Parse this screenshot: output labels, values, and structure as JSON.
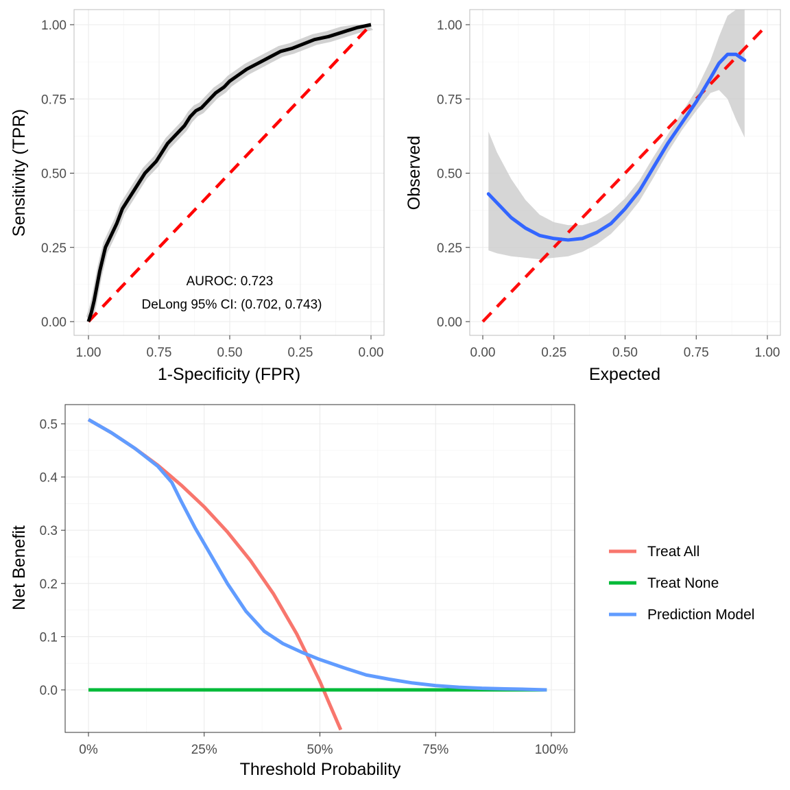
{
  "chart_data": [
    {
      "type": "line",
      "panel": "roc",
      "xlabel": "1-Specificity (FPR)",
      "ylabel": "Sensitivity (TPR)",
      "xlim": [
        1.0,
        0.0
      ],
      "ylim": [
        0.0,
        1.0
      ],
      "x_reversed": true,
      "grid": true,
      "x_ticks": [
        "1.00",
        "0.75",
        "0.50",
        "0.25",
        "0.00"
      ],
      "y_ticks": [
        "0.00",
        "0.25",
        "0.50",
        "0.75",
        "1.00"
      ],
      "annotations": [
        "AUROC: 0.723",
        "DeLong 95% CI: (0.702, 0.743)"
      ],
      "colors": {
        "curve": "#000000",
        "reference": "#ff0000",
        "band": "#cccccc"
      },
      "series": [
        {
          "role": "curve",
          "x_spec": [
            1.0,
            0.99,
            0.98,
            0.97,
            0.96,
            0.95,
            0.94,
            0.92,
            0.9,
            0.88,
            0.86,
            0.84,
            0.82,
            0.8,
            0.78,
            0.76,
            0.74,
            0.72,
            0.7,
            0.68,
            0.66,
            0.64,
            0.62,
            0.6,
            0.58,
            0.55,
            0.52,
            0.5,
            0.47,
            0.44,
            0.4,
            0.36,
            0.32,
            0.28,
            0.24,
            0.2,
            0.15,
            0.1,
            0.05,
            0.0
          ],
          "y": [
            0.0,
            0.03,
            0.07,
            0.12,
            0.17,
            0.21,
            0.25,
            0.29,
            0.33,
            0.38,
            0.41,
            0.44,
            0.47,
            0.5,
            0.52,
            0.54,
            0.57,
            0.6,
            0.62,
            0.64,
            0.66,
            0.69,
            0.71,
            0.72,
            0.74,
            0.77,
            0.79,
            0.81,
            0.83,
            0.85,
            0.87,
            0.89,
            0.91,
            0.92,
            0.935,
            0.95,
            0.96,
            0.975,
            0.99,
            1.0
          ],
          "band": 0.018
        },
        {
          "role": "reference",
          "x_spec": [
            1.0,
            0.0
          ],
          "y": [
            0.0,
            1.0
          ]
        }
      ]
    },
    {
      "type": "line",
      "panel": "calibration",
      "xlabel": "Expected",
      "ylabel": "Observed",
      "xlim": [
        0.0,
        1.0
      ],
      "ylim": [
        0.0,
        1.0
      ],
      "grid": true,
      "x_ticks": [
        "0.00",
        "0.25",
        "0.50",
        "0.75",
        "1.00"
      ],
      "y_ticks": [
        "0.00",
        "0.25",
        "0.50",
        "0.75",
        "1.00"
      ],
      "colors": {
        "curve": "#3366ff",
        "reference": "#ff0000",
        "band": "#cccccc"
      },
      "series": [
        {
          "role": "curve",
          "x": [
            0.02,
            0.05,
            0.1,
            0.15,
            0.2,
            0.25,
            0.3,
            0.35,
            0.4,
            0.45,
            0.5,
            0.55,
            0.6,
            0.65,
            0.7,
            0.75,
            0.8,
            0.83,
            0.86,
            0.89,
            0.92
          ],
          "y": [
            0.43,
            0.4,
            0.35,
            0.315,
            0.29,
            0.28,
            0.275,
            0.28,
            0.3,
            0.33,
            0.38,
            0.44,
            0.52,
            0.6,
            0.67,
            0.74,
            0.82,
            0.87,
            0.9,
            0.9,
            0.88
          ],
          "band_lower": [
            0.24,
            0.23,
            0.22,
            0.215,
            0.21,
            0.215,
            0.22,
            0.235,
            0.26,
            0.295,
            0.345,
            0.405,
            0.485,
            0.57,
            0.645,
            0.71,
            0.77,
            0.78,
            0.75,
            0.68,
            0.62
          ],
          "band_upper": [
            0.64,
            0.57,
            0.48,
            0.41,
            0.36,
            0.335,
            0.325,
            0.325,
            0.34,
            0.37,
            0.415,
            0.475,
            0.555,
            0.63,
            0.705,
            0.78,
            0.88,
            0.96,
            1.03,
            1.1,
            1.14
          ]
        },
        {
          "role": "reference",
          "x": [
            0.0,
            1.0
          ],
          "y": [
            0.0,
            1.0
          ]
        }
      ]
    },
    {
      "type": "line",
      "panel": "decision-curve",
      "xlabel": "Threshold Probability",
      "ylabel": "Net Benefit",
      "xlim": [
        0.0,
        1.0
      ],
      "ylim": [
        -0.08,
        0.53
      ],
      "grid": true,
      "x_ticks": [
        "0%",
        "25%",
        "50%",
        "75%",
        "100%"
      ],
      "y_ticks": [
        "0.0",
        "0.1",
        "0.2",
        "0.3",
        "0.4",
        "0.5"
      ],
      "legend": "right",
      "series": [
        {
          "name": "Treat All",
          "color": "#f8766d",
          "x": [
            0.0,
            0.05,
            0.1,
            0.15,
            0.2,
            0.25,
            0.3,
            0.35,
            0.4,
            0.45,
            0.5,
            0.52,
            0.545
          ],
          "y": [
            0.508,
            0.483,
            0.454,
            0.422,
            0.385,
            0.344,
            0.297,
            0.243,
            0.18,
            0.105,
            0.016,
            -0.025,
            -0.075
          ]
        },
        {
          "name": "Treat None",
          "color": "#00ba38",
          "x": [
            0.0,
            0.99
          ],
          "y": [
            0.0,
            0.0
          ]
        },
        {
          "name": "Prediction Model",
          "color": "#619cff",
          "x": [
            0.0,
            0.05,
            0.1,
            0.15,
            0.18,
            0.2,
            0.23,
            0.26,
            0.3,
            0.34,
            0.38,
            0.42,
            0.46,
            0.5,
            0.55,
            0.6,
            0.65,
            0.7,
            0.75,
            0.8,
            0.85,
            0.9,
            0.95,
            0.99
          ],
          "y": [
            0.508,
            0.483,
            0.454,
            0.42,
            0.39,
            0.355,
            0.305,
            0.26,
            0.2,
            0.148,
            0.11,
            0.087,
            0.071,
            0.057,
            0.042,
            0.028,
            0.02,
            0.013,
            0.008,
            0.005,
            0.003,
            0.002,
            0.001,
            0.0
          ]
        }
      ]
    }
  ]
}
